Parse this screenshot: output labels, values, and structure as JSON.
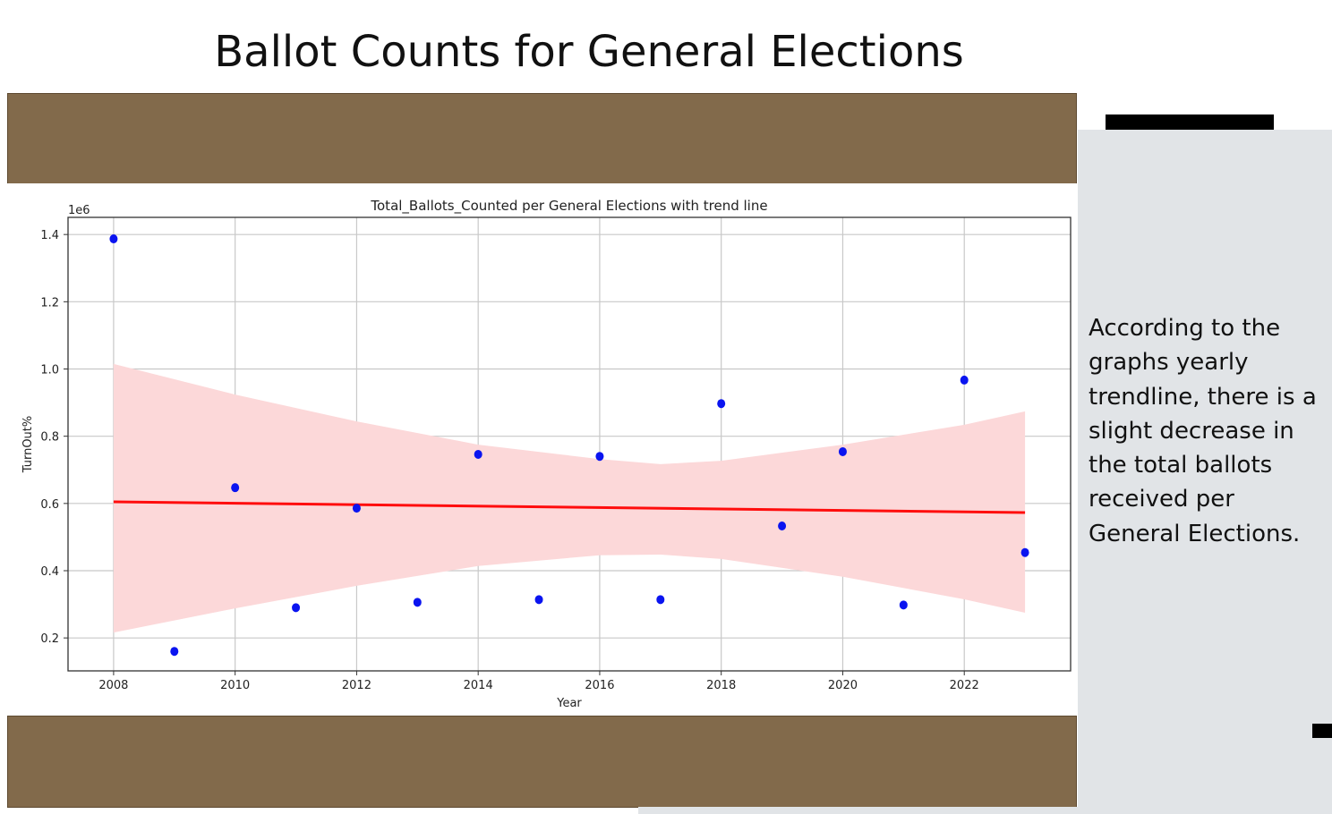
{
  "slide": {
    "title": "Ballot Counts for General Elections",
    "side_text": "According to the graphs yearly trendline, there is a slight decrease in the total ballots received per General Elections.",
    "colors": {
      "band": "#826a4b",
      "panel": "#e1e4e7",
      "points": "#0a14f0",
      "trend": "#ff0d0d",
      "ci": "#fcd8d9"
    }
  },
  "chart_data": {
    "type": "scatter",
    "title": "Total_Ballots_Counted per General Elections with trend line",
    "xlabel": "Year",
    "ylabel": "TurnOut%",
    "y_offset_label": "1e6",
    "xlim": [
      2007.25,
      2023.75
    ],
    "ylim": [
      0.102,
      1.451
    ],
    "grid": true,
    "x_ticks": [
      2008,
      2010,
      2012,
      2014,
      2016,
      2018,
      2020,
      2022
    ],
    "x_tick_labels": [
      "2008",
      "2010",
      "2012",
      "2014",
      "2016",
      "2018",
      "2020",
      "2022"
    ],
    "y_ticks": [
      0.2,
      0.4,
      0.6,
      0.8,
      1.0,
      1.2,
      1.4
    ],
    "y_tick_labels": [
      "0.2",
      "0.4",
      "0.6",
      "0.8",
      "1.0",
      "1.2",
      "1.4"
    ],
    "x": [
      2008,
      2009,
      2010,
      2011,
      2012,
      2013,
      2014,
      2015,
      2016,
      2017,
      2018,
      2019,
      2020,
      2021,
      2022,
      2023
    ],
    "y": [
      1.387,
      0.16,
      0.647,
      0.29,
      0.586,
      0.306,
      0.746,
      0.314,
      0.74,
      0.314,
      0.897,
      0.533,
      0.754,
      0.298,
      0.967,
      0.454
    ],
    "trend_line": {
      "x": [
        2008,
        2023
      ],
      "y": [
        0.605,
        0.573
      ]
    },
    "confidence_band": {
      "x": [
        2008,
        2010,
        2012,
        2014,
        2016,
        2017,
        2018,
        2020,
        2022,
        2023
      ],
      "upper": [
        1.015,
        0.924,
        0.844,
        0.775,
        0.732,
        0.717,
        0.727,
        0.775,
        0.834,
        0.874
      ],
      "lower": [
        0.216,
        0.288,
        0.355,
        0.414,
        0.446,
        0.448,
        0.435,
        0.382,
        0.315,
        0.275
      ]
    }
  }
}
